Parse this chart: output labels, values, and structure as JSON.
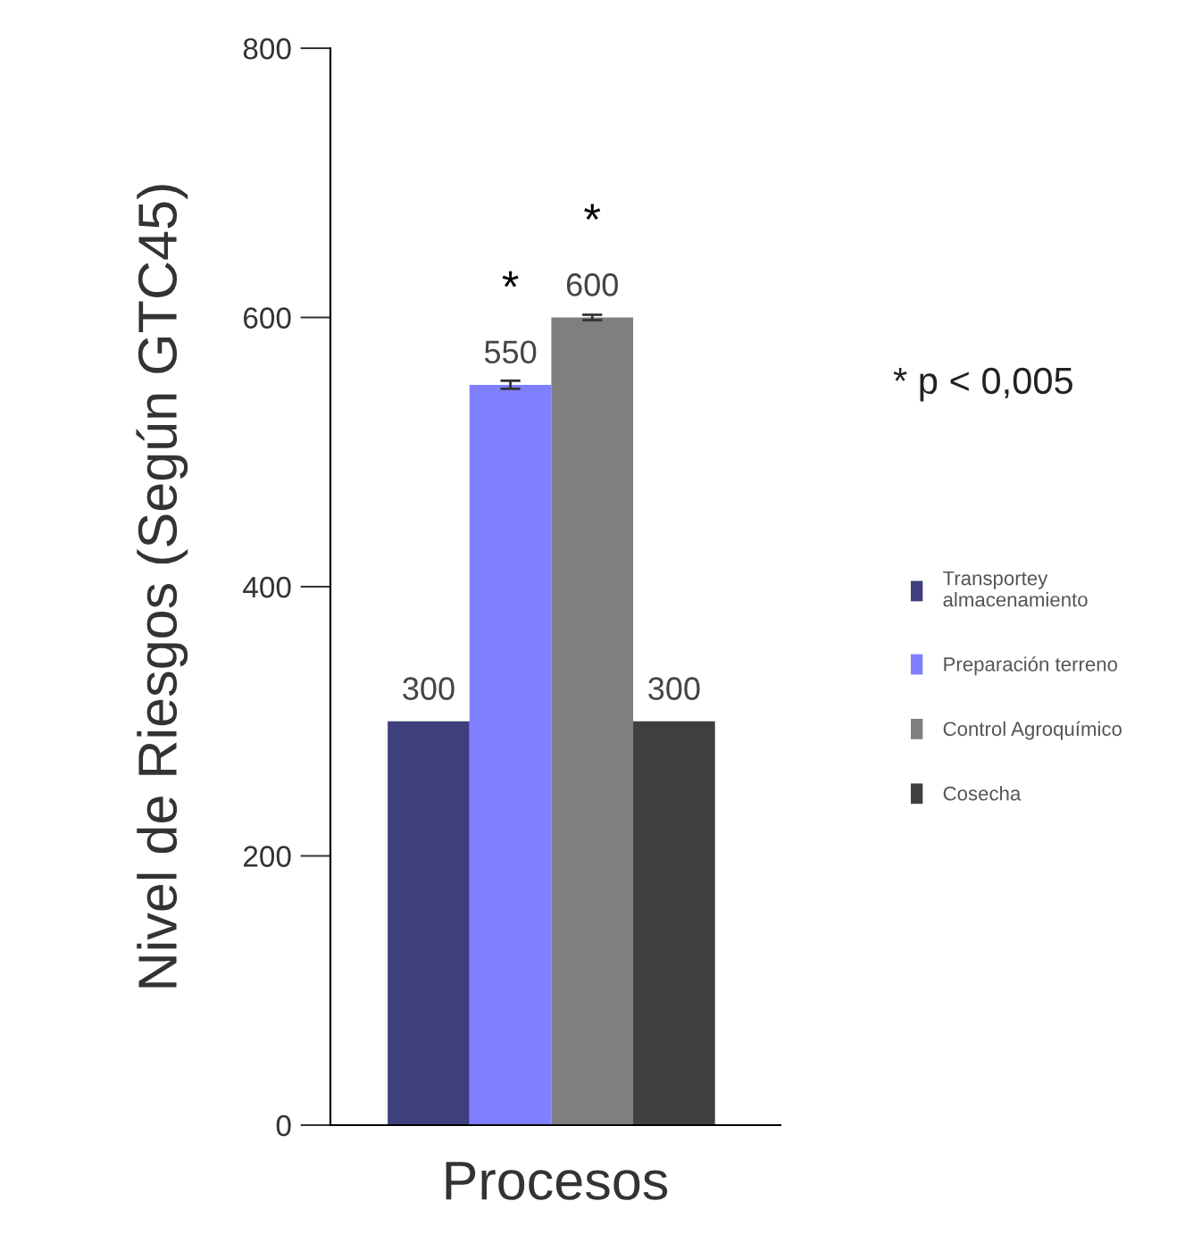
{
  "chart_data": {
    "type": "bar",
    "xlabel": "Procesos",
    "ylabel": "Nivel de Riesgos (Según GTC45)",
    "categories": [
      null,
      null,
      null,
      null
    ],
    "series": [
      {
        "name": "Transportey almacenamiento",
        "color": "#3f3f7e",
        "values": [
          300,
          null,
          null,
          null
        ]
      },
      {
        "name": "Preparación terreno",
        "color": "#7f7fff",
        "values": [
          null,
          550,
          null,
          null
        ],
        "errors": [
          null,
          3,
          null,
          null
        ]
      },
      {
        "name": "Control Agroquímico",
        "color": "#7f7f7f",
        "values": [
          null,
          null,
          600,
          null
        ],
        "errors": [
          null,
          null,
          2,
          null
        ]
      },
      {
        "name": "Cosecha",
        "color": "#3f3f3f",
        "values": [
          null,
          null,
          null,
          300
        ]
      }
    ],
    "ylim": [
      0,
      800
    ],
    "yticks": [
      0,
      200,
      400,
      600,
      800
    ],
    "data_labels": true,
    "tick_labels": "y",
    "grid": false,
    "legend": "right",
    "annotations": [
      "*",
      "*",
      "* p < 0,005"
    ]
  }
}
